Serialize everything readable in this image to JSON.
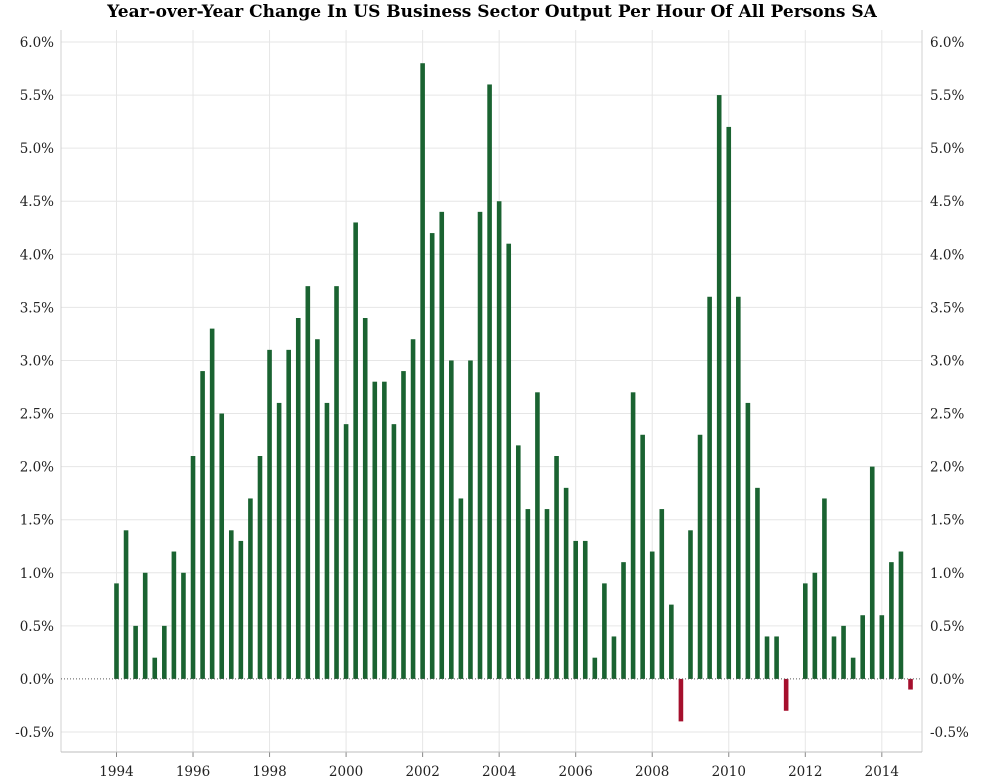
{
  "chart_data": {
    "type": "bar",
    "title": "Year-over-Year Change In US Business Sector Output Per Hour Of All Persons SA",
    "xlabel": "",
    "ylabel": "",
    "ylim": [
      -0.5,
      6.0
    ],
    "xlim": [
      1992.55,
      2015.05
    ],
    "grid": true,
    "legend": "none",
    "y_ticks": [
      -0.5,
      0.0,
      0.5,
      1.0,
      1.5,
      2.0,
      2.5,
      3.0,
      3.5,
      4.0,
      4.5,
      5.0,
      5.5,
      6.0
    ],
    "y_tick_labels": [
      "-0.5%",
      "0.0%",
      "0.5%",
      "1.0%",
      "1.5%",
      "2.0%",
      "2.5%",
      "3.0%",
      "3.5%",
      "4.0%",
      "4.5%",
      "5.0%",
      "5.5%",
      "6.0%"
    ],
    "x_ticks": [
      1994,
      1996,
      1998,
      2000,
      2002,
      2004,
      2006,
      2008,
      2010,
      2012,
      2014
    ],
    "x_tick_labels": [
      "1994",
      "1996",
      "1998",
      "2000",
      "2002",
      "2004",
      "2006",
      "2008",
      "2010",
      "2012",
      "2014"
    ],
    "series_start": "1994-Q1",
    "frequency": "quarterly",
    "values": [
      0.9,
      1.4,
      0.5,
      1.0,
      0.2,
      0.5,
      1.2,
      1.0,
      2.1,
      2.9,
      3.3,
      2.5,
      1.4,
      1.3,
      1.7,
      2.1,
      3.1,
      2.6,
      3.1,
      3.4,
      3.7,
      3.2,
      2.6,
      3.7,
      2.4,
      4.3,
      3.4,
      2.8,
      2.8,
      2.4,
      2.9,
      3.2,
      5.8,
      4.2,
      4.4,
      3.0,
      1.7,
      3.0,
      4.4,
      5.6,
      4.5,
      4.1,
      2.2,
      1.6,
      2.7,
      1.6,
      2.1,
      1.8,
      1.3,
      1.3,
      0.2,
      0.9,
      0.4,
      1.1,
      2.7,
      2.3,
      1.2,
      1.6,
      0.7,
      -0.4,
      1.4,
      2.3,
      3.6,
      5.5,
      5.2,
      3.6,
      2.6,
      1.8,
      0.4,
      0.4,
      -0.3,
      0.0,
      0.9,
      1.0,
      1.7,
      0.4,
      0.5,
      0.2,
      0.6,
      2.0,
      0.6,
      1.1,
      1.2,
      -0.1
    ],
    "colors": {
      "positive": "#1a6331",
      "negative": "#a50f2d",
      "grid": "#e6e6e6",
      "zero_line": "#5a5a5a"
    }
  }
}
